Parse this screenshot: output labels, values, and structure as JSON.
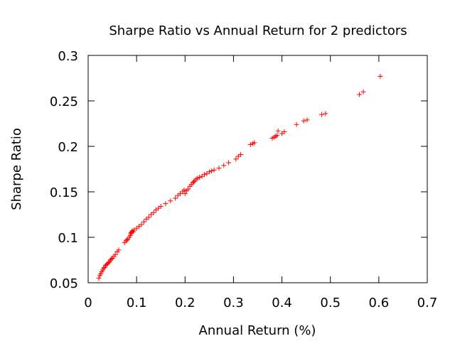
{
  "chart_data": {
    "type": "scatter",
    "title": "Sharpe Ratio vs Annual Return for 2 predictors",
    "xlabel": "Annual Return (%)",
    "ylabel": "Sharpe Ratio",
    "xlim": [
      0,
      0.7
    ],
    "ylim": [
      0.05,
      0.3
    ],
    "x_ticks": [
      "0",
      "0.1",
      "0.2",
      "0.3",
      "0.4",
      "0.5",
      "0.6",
      "0.7"
    ],
    "y_ticks": [
      "0.05",
      "0.1",
      "0.15",
      "0.2",
      "0.25",
      "0.3"
    ],
    "grid": false,
    "legend": "none",
    "marker": "plus",
    "color": "#ff0000",
    "series": [
      {
        "x": [
          0.022,
          0.024,
          0.026,
          0.028,
          0.03,
          0.032,
          0.034,
          0.036,
          0.038,
          0.04,
          0.042,
          0.044,
          0.046,
          0.048,
          0.05,
          0.053,
          0.056,
          0.06,
          0.063,
          0.075,
          0.078,
          0.08,
          0.082,
          0.085,
          0.087,
          0.088,
          0.089,
          0.09,
          0.091,
          0.093,
          0.095,
          0.1,
          0.105,
          0.11,
          0.115,
          0.12,
          0.125,
          0.13,
          0.135,
          0.14,
          0.145,
          0.15,
          0.16,
          0.17,
          0.18,
          0.185,
          0.19,
          0.195,
          0.198,
          0.2,
          0.203,
          0.206,
          0.21,
          0.213,
          0.216,
          0.218,
          0.22,
          0.223,
          0.226,
          0.23,
          0.235,
          0.24,
          0.245,
          0.25,
          0.255,
          0.26,
          0.27,
          0.28,
          0.29,
          0.305,
          0.31,
          0.315,
          0.335,
          0.34,
          0.343,
          0.38,
          0.384,
          0.387,
          0.39,
          0.392,
          0.4,
          0.405,
          0.43,
          0.445,
          0.452,
          0.482,
          0.49,
          0.56,
          0.568,
          0.603
        ],
        "y": [
          0.055,
          0.058,
          0.06,
          0.062,
          0.064,
          0.066,
          0.067,
          0.069,
          0.07,
          0.071,
          0.072,
          0.073,
          0.075,
          0.076,
          0.077,
          0.079,
          0.081,
          0.084,
          0.086,
          0.094,
          0.096,
          0.097,
          0.098,
          0.1,
          0.102,
          0.104,
          0.105,
          0.106,
          0.107,
          0.106,
          0.108,
          0.11,
          0.112,
          0.114,
          0.117,
          0.12,
          0.122,
          0.125,
          0.127,
          0.13,
          0.132,
          0.134,
          0.137,
          0.14,
          0.143,
          0.146,
          0.148,
          0.15,
          0.152,
          0.148,
          0.151,
          0.153,
          0.156,
          0.158,
          0.16,
          0.161,
          0.162,
          0.164,
          0.165,
          0.166,
          0.167,
          0.169,
          0.17,
          0.172,
          0.173,
          0.174,
          0.176,
          0.179,
          0.182,
          0.186,
          0.189,
          0.191,
          0.202,
          0.203,
          0.204,
          0.209,
          0.21,
          0.211,
          0.212,
          0.217,
          0.214,
          0.216,
          0.224,
          0.228,
          0.229,
          0.235,
          0.236,
          0.257,
          0.26,
          0.277
        ]
      }
    ]
  }
}
